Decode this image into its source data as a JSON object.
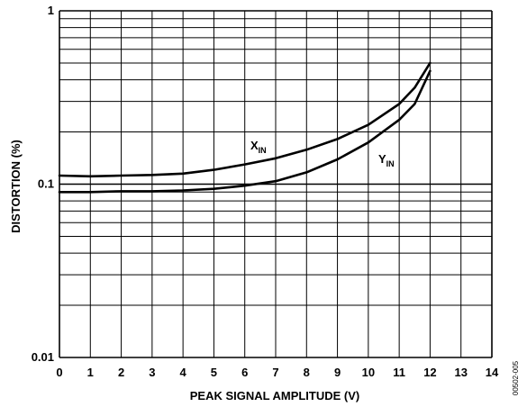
{
  "chart_data": {
    "type": "line",
    "xlabel": "PEAK SIGNAL AMPLITUDE (V)",
    "ylabel": "DISTORTION (%)",
    "xlim": [
      0,
      14
    ],
    "ylim": [
      0.01,
      1
    ],
    "yscale": "log",
    "grid": true,
    "x_ticks": [
      "0",
      "1",
      "2",
      "3",
      "4",
      "5",
      "6",
      "7",
      "8",
      "9",
      "10",
      "11",
      "12",
      "13",
      "14"
    ],
    "y_ticks": [
      "0.01",
      "0.1",
      "1"
    ],
    "series": [
      {
        "label_main": "X",
        "label_sub": "IN",
        "x": [
          0,
          1,
          2,
          3,
          4,
          5,
          6,
          7,
          8,
          9,
          10,
          11,
          11.5,
          12
        ],
        "values": [
          0.112,
          0.111,
          0.112,
          0.113,
          0.115,
          0.121,
          0.13,
          0.141,
          0.158,
          0.182,
          0.22,
          0.29,
          0.36,
          0.5
        ]
      },
      {
        "label_main": "Y",
        "label_sub": "IN",
        "x": [
          0,
          1,
          2,
          3,
          4,
          5,
          6,
          7,
          8,
          9,
          10,
          11,
          11.5,
          12
        ],
        "values": [
          0.09,
          0.09,
          0.091,
          0.091,
          0.092,
          0.094,
          0.098,
          0.104,
          0.117,
          0.139,
          0.174,
          0.235,
          0.29,
          0.45
        ]
      }
    ],
    "figure_code": "00502-005"
  }
}
